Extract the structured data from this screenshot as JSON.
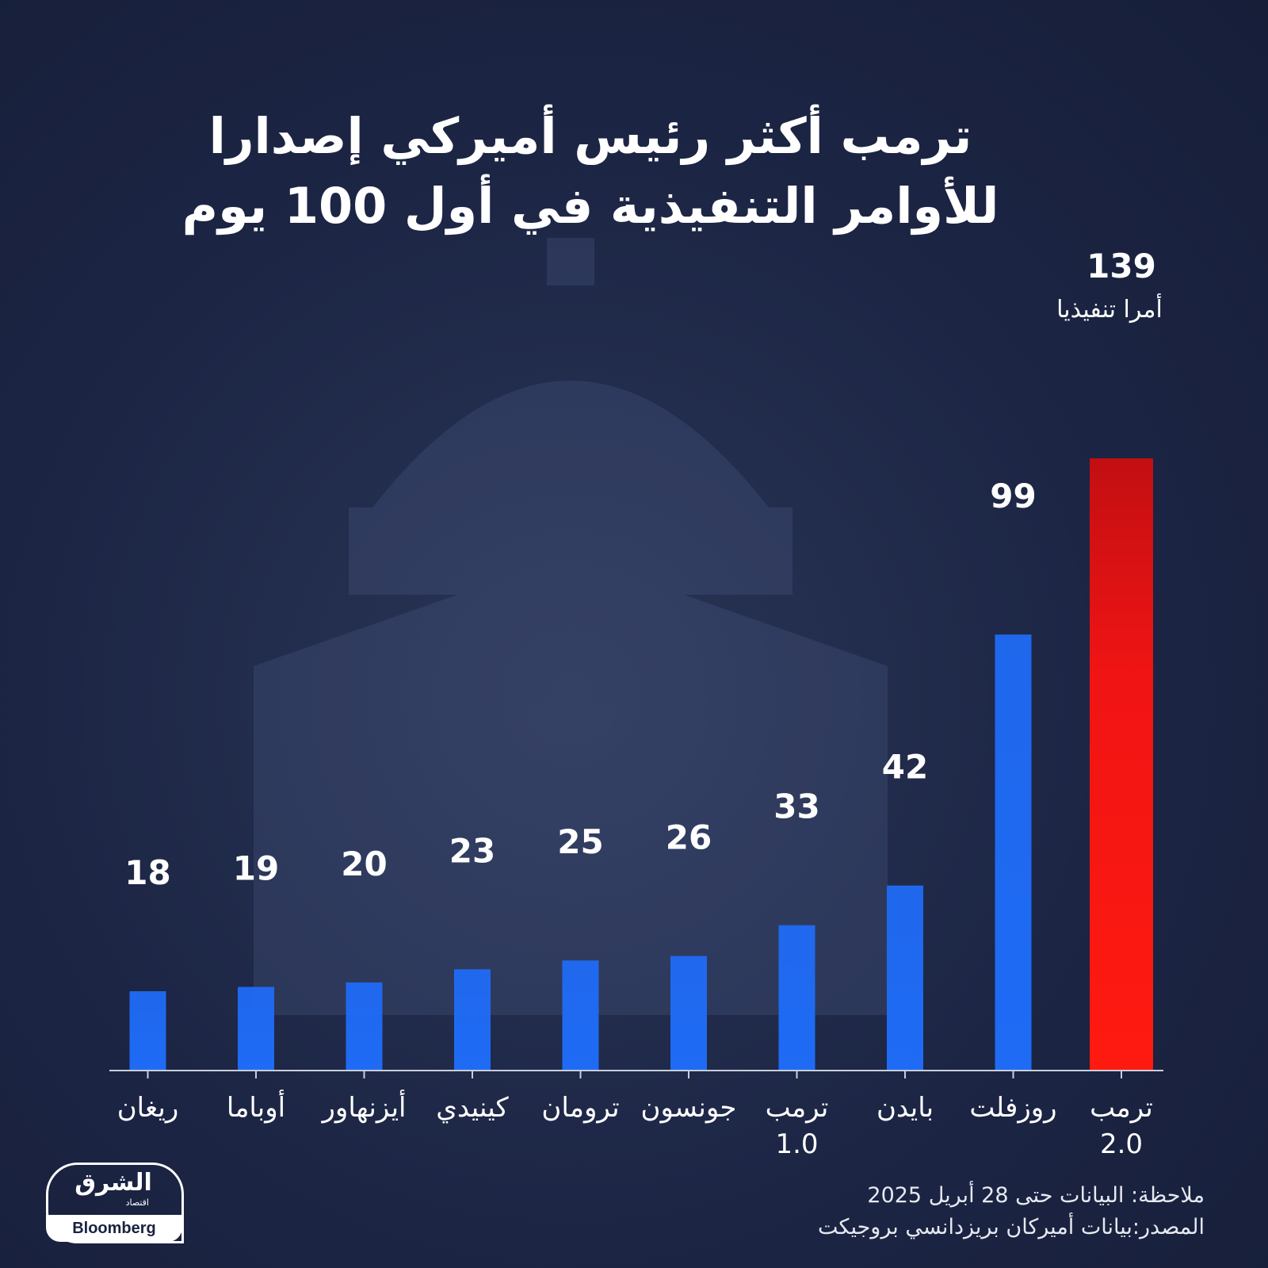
{
  "title": "ترمب أكثر رئيس أميركي إصدارا للأوامر التنفيذية في أول 100 يوم",
  "chart_data": {
    "type": "bar",
    "title": "ترمب أكثر رئيس أميركي إصدارا للأوامر التنفيذية في أول 100 يوم",
    "categories": [
      "ريغان",
      "أوباما",
      "أيزنهاور",
      "كينيدي",
      "ترومان",
      "جونسون",
      "ترمب 1.0",
      "بايدن",
      "روزفلت",
      "ترمب 2.0"
    ],
    "category_lines": [
      [
        "ريغان"
      ],
      [
        "أوباما"
      ],
      [
        "أيزنهاور"
      ],
      [
        "كينيدي"
      ],
      [
        "ترومان"
      ],
      [
        "جونسون"
      ],
      [
        "ترمب",
        "1.0"
      ],
      [
        "بايدن"
      ],
      [
        "روزفلت"
      ],
      [
        "ترمب",
        "2.0"
      ]
    ],
    "values": [
      18,
      19,
      20,
      23,
      25,
      26,
      33,
      42,
      99,
      139
    ],
    "highlight_annotation": "أمرا تنفيذيا",
    "bar_colors": [
      "#1f6bf5",
      "#1f6bf5",
      "#1f6bf5",
      "#1f6bf5",
      "#1f6bf5",
      "#1f6bf5",
      "#1f6bf5",
      "#1f6bf5",
      "#1f6bf5",
      "#f01414"
    ],
    "xlabel": "",
    "ylabel": "",
    "ylim": [
      0,
      139
    ],
    "grid": false,
    "legend": "none"
  },
  "note": "ملاحظة: البيانات حتى 28 أبريل 2025",
  "source": "المصدر:بيانات أميركان بريزدانسي بروجيكت",
  "logo": {
    "arabic": "الشرق",
    "arabic_sub": "اقتصاد",
    "english": "Bloomberg"
  },
  "colors": {
    "background": "#1c2544",
    "bar_default": "#1f6bf5",
    "bar_highlight": "#f01414",
    "text": "#ffffff"
  }
}
